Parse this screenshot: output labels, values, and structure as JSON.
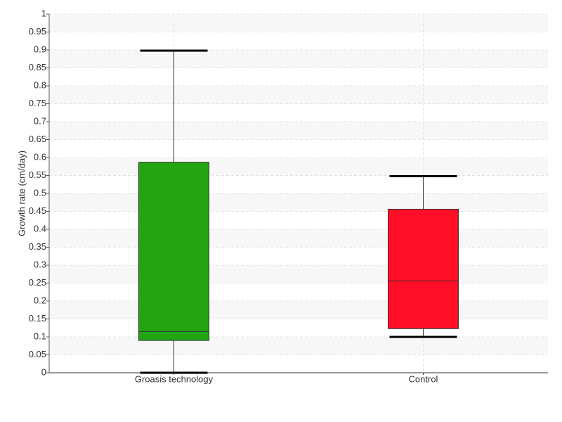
{
  "chart_data": {
    "type": "box",
    "y_label": "Growth rate (cm/day)",
    "categories": [
      "Groasis technology",
      "Control"
    ],
    "boxes": [
      {
        "min": 0,
        "q1": 0.09,
        "median": 0.115,
        "q3": 0.587,
        "max": 0.898,
        "color": "#22a511"
      },
      {
        "min": 0.1,
        "q1": 0.123,
        "median": 0.256,
        "q3": 0.456,
        "max": 0.548,
        "color": "#ff0e26"
      }
    ],
    "ylim": [
      0,
      1
    ],
    "yticks": [
      0,
      0.05,
      0.1,
      0.15,
      0.2,
      0.25,
      0.3,
      0.35,
      0.4,
      0.45,
      0.5,
      0.55,
      0.6,
      0.65,
      0.7,
      0.75,
      0.8,
      0.85,
      0.9,
      0.95,
      1
    ],
    "grid": true
  }
}
